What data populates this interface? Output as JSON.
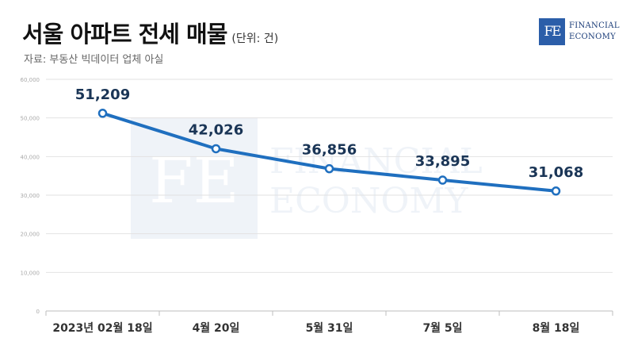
{
  "header": {
    "title": "서울 아파트 전세 매물",
    "unit": "(단위: 건)",
    "source": "자료: 부동산 빅데이터 업체 아실"
  },
  "logo": {
    "mark": "FE",
    "line1": "FINANCIAL",
    "line2": "ECONOMY"
  },
  "watermark": {
    "mark": "FE",
    "line1": "FINANCIAL",
    "line2": "ECONOMY"
  },
  "colors": {
    "line": "#1f6fbf",
    "accent": "#2b5ea9",
    "grid": "#e2e2e2",
    "label": "#1a3556"
  },
  "chart_data": {
    "type": "line",
    "categories": [
      "2023년 02월 18일",
      "4월 20일",
      "5월 31일",
      "7월 5일",
      "8월 18일"
    ],
    "series": [
      {
        "values": [
          51209,
          42026,
          36856,
          33895,
          31068
        ]
      }
    ],
    "value_labels": [
      "51,209",
      "42,026",
      "36,856",
      "33,895",
      "31,068"
    ],
    "yticks": [
      "0",
      "10,000",
      "20,000",
      "30,000",
      "40,000",
      "50,000",
      "60,000"
    ],
    "ylim": [
      0,
      60000
    ],
    "grid": true,
    "legend": "none"
  }
}
